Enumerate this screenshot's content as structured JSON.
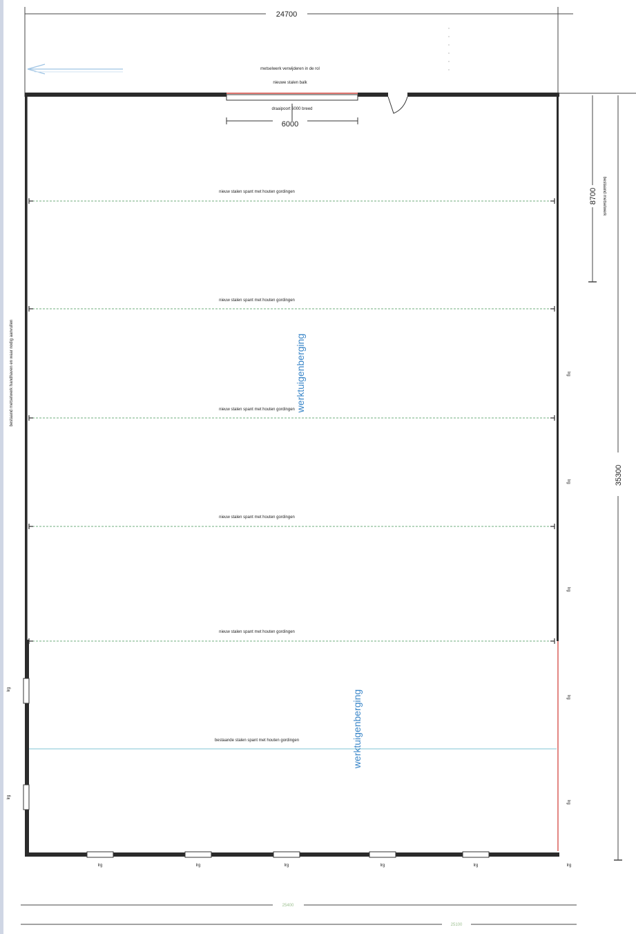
{
  "dimensions": {
    "top_width": "24700",
    "door_width": "6000",
    "right_partial": "8700",
    "right_total": "35300",
    "bottom_1": "25400",
    "bottom_2": "25100"
  },
  "top_notes": {
    "line1": "metselwerk verwijderen in de rol",
    "line2": "nieuwe stalen balk",
    "door_note": "draaipoort 6000 breed",
    "right_note": "bestaand metselwerk"
  },
  "beam_labels": [
    "nieuw stalen spant met houten gordingen",
    "nieuw stalen spant met houten gordingen",
    "nieuw stalen spant met houten gordingen",
    "nieuw stalen spant met houten gordingen",
    "nieuw stalen spant met houten gordingen",
    "bestaande stalen spant met houten gordingen"
  ],
  "room_labels": [
    "werktuigenberging",
    "werktuigenberging"
  ],
  "left_wall_note": "bestaand metselwerk handhaven en waar nodig aanvullen",
  "opening_label": "lrg",
  "colors": {
    "wall": "#2b2b2b",
    "beam": "#6fae7c",
    "existing_beam": "#7fc6d6",
    "red": "#d2453f",
    "text_blue": "#3a86c8"
  }
}
